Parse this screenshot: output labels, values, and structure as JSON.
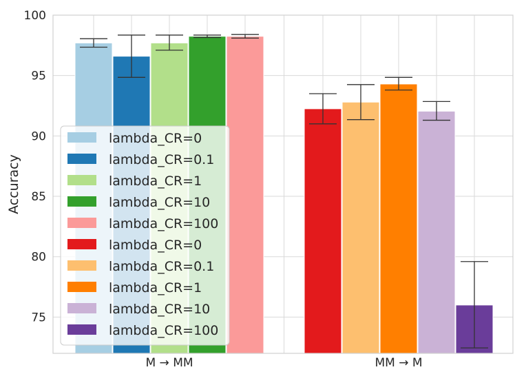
{
  "chart_data": {
    "type": "bar",
    "ylabel": "Accuracy",
    "xlabel": "",
    "ylim": [
      72,
      100
    ],
    "yticks": [
      75,
      80,
      85,
      90,
      95,
      100
    ],
    "grid": true,
    "legend_position": "center-left",
    "groups": [
      {
        "label": "M → MM",
        "series": [
          {
            "name": "lambda_CR=0",
            "value": 97.7,
            "err_low": 97.35,
            "err_high": 98.05,
            "color": "#a6cee3"
          },
          {
            "name": "lambda_CR=0.1",
            "value": 96.6,
            "err_low": 94.85,
            "err_high": 98.35,
            "color": "#1f78b4"
          },
          {
            "name": "lambda_CR=1",
            "value": 97.7,
            "err_low": 97.1,
            "err_high": 98.35,
            "color": "#b2df8a"
          },
          {
            "name": "lambda_CR=10",
            "value": 98.25,
            "err_low": 98.15,
            "err_high": 98.35,
            "color": "#33a02c"
          },
          {
            "name": "lambda_CR=100",
            "value": 98.25,
            "err_low": 98.1,
            "err_high": 98.4,
            "color": "#fb9a99"
          }
        ]
      },
      {
        "label": "MM → M",
        "series": [
          {
            "name": "lambda_CR=0",
            "value": 92.25,
            "err_low": 91.0,
            "err_high": 93.5,
            "color": "#e31a1c"
          },
          {
            "name": "lambda_CR=0.1",
            "value": 92.8,
            "err_low": 91.35,
            "err_high": 94.25,
            "color": "#fdbf6f"
          },
          {
            "name": "lambda_CR=1",
            "value": 94.3,
            "err_low": 93.8,
            "err_high": 94.85,
            "color": "#ff7f00"
          },
          {
            "name": "lambda_CR=10",
            "value": 92.05,
            "err_low": 91.3,
            "err_high": 92.85,
            "color": "#cab2d6"
          },
          {
            "name": "lambda_CR=100",
            "value": 76.0,
            "err_low": 72.45,
            "err_high": 79.6,
            "color": "#6a3d9a"
          }
        ]
      }
    ],
    "legend": [
      {
        "label": "lambda_CR=0",
        "color": "#a6cee3"
      },
      {
        "label": "lambda_CR=0.1",
        "color": "#1f78b4"
      },
      {
        "label": "lambda_CR=1",
        "color": "#b2df8a"
      },
      {
        "label": "lambda_CR=10",
        "color": "#33a02c"
      },
      {
        "label": "lambda_CR=100",
        "color": "#fb9a99"
      },
      {
        "label": "lambda_CR=0",
        "color": "#e31a1c"
      },
      {
        "label": "lambda_CR=0.1",
        "color": "#fdbf6f"
      },
      {
        "label": "lambda_CR=1",
        "color": "#ff7f00"
      },
      {
        "label": "lambda_CR=10",
        "color": "#cab2d6"
      },
      {
        "label": "lambda_CR=100",
        "color": "#6a3d9a"
      }
    ]
  }
}
